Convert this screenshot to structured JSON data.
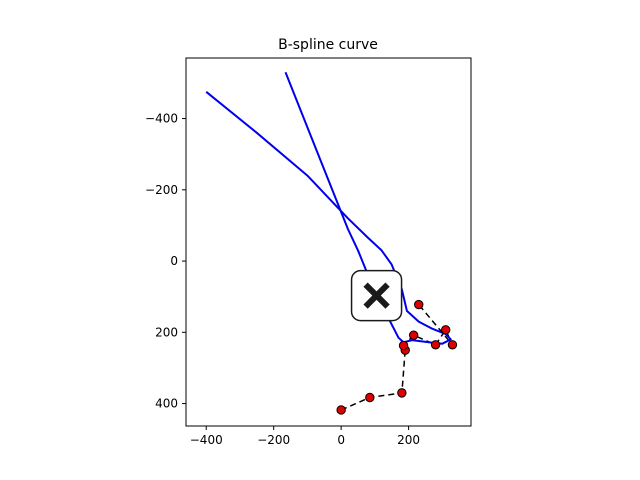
{
  "chart_data": {
    "type": "line",
    "title": "B-spline curve",
    "xlabel": "",
    "ylabel": "",
    "xlim": [
      -460,
      385
    ],
    "ylim": [
      463,
      -570
    ],
    "y_inverted": true,
    "grid": false,
    "x_ticks": [
      -400,
      -200,
      0,
      200
    ],
    "y_ticks": [
      -400,
      -200,
      0,
      200,
      400
    ],
    "x_tick_labels": [
      "−400",
      "−200",
      "0",
      "200"
    ],
    "y_tick_labels": [
      "−400",
      "−200",
      "0",
      "200",
      "400"
    ],
    "series": [
      {
        "kind": "control-polygon",
        "style": "dashed",
        "line_color": "#000000",
        "marker_color": "#dd0000",
        "x": [
          0,
          85,
          180,
          190,
          185,
          215,
          280,
          310,
          330,
          230
        ],
        "y": [
          418,
          383,
          370,
          250,
          237,
          208,
          235,
          193,
          235,
          122
        ]
      },
      {
        "kind": "spline-curve",
        "style": "solid",
        "line_color": "#0000ee",
        "x": [
          -400,
          -250,
          -100,
          20,
          80,
          120,
          150,
          180,
          195,
          230,
          270,
          310,
          325,
          300,
          260,
          210,
          185,
          170,
          140,
          110,
          80,
          50,
          20,
          -60,
          -165
        ],
        "y": [
          -475,
          -360,
          -240,
          -120,
          -65,
          -30,
          10,
          80,
          140,
          170,
          190,
          205,
          220,
          232,
          228,
          222,
          228,
          215,
          160,
          100,
          40,
          -30,
          -90,
          -280,
          -530
        ]
      }
    ],
    "annotations": [
      {
        "kind": "cross-marker",
        "x": 105,
        "y": 97,
        "color": "#1a1a1a"
      }
    ]
  }
}
